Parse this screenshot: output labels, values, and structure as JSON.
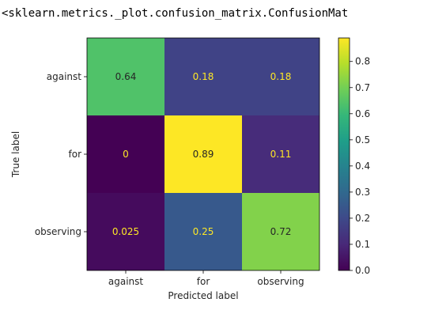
{
  "output_repr": "<sklearn.metrics._plot.confusion_matrix.ConfusionMat",
  "chart_data": {
    "type": "heatmap",
    "title": "",
    "xlabel": "Predicted label",
    "ylabel": "True label",
    "x_categories": [
      "against",
      "for",
      "observing"
    ],
    "y_categories": [
      "against",
      "for",
      "observing"
    ],
    "values": [
      [
        0.64,
        0.18,
        0.18
      ],
      [
        0,
        0.89,
        0.11
      ],
      [
        0.025,
        0.25,
        0.72
      ]
    ],
    "value_labels": [
      [
        "0.64",
        "0.18",
        "0.18"
      ],
      [
        "0",
        "0.89",
        "0.11"
      ],
      [
        "0.025",
        "0.25",
        "0.72"
      ]
    ],
    "colormap": "viridis",
    "colorbar": {
      "range": [
        0,
        0.89
      ],
      "ticks": [
        0.0,
        0.1,
        0.2,
        0.3,
        0.4,
        0.5,
        0.6,
        0.7,
        0.8
      ],
      "tick_labels": [
        "0.0",
        "0.1",
        "0.2",
        "0.3",
        "0.4",
        "0.5",
        "0.6",
        "0.7",
        "0.8"
      ]
    },
    "label_colors": {
      "light_bg": "#262626",
      "dark_bg": "#fde725"
    }
  }
}
